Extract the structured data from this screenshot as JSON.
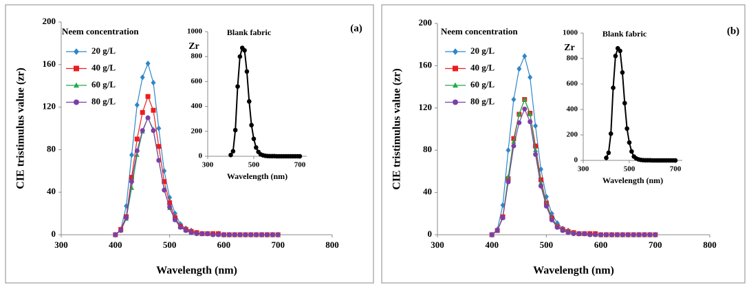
{
  "chart_data": [
    {
      "type": "line",
      "panel_label": "(a)",
      "x_label": "Wavelength (nm)",
      "y_label": "CIE tristimulus value (zr)",
      "legend_title": "Neem concentration",
      "xlim": [
        300,
        800
      ],
      "xticks": [
        300,
        400,
        500,
        600,
        700,
        800
      ],
      "ylim": [
        0,
        200
      ],
      "yticks": [
        0,
        40,
        80,
        120,
        160,
        200
      ],
      "x": [
        400,
        410,
        420,
        430,
        440,
        450,
        460,
        470,
        480,
        490,
        500,
        510,
        520,
        530,
        540,
        550,
        560,
        570,
        580,
        590,
        600,
        610,
        620,
        630,
        640,
        650,
        660,
        670,
        680,
        690,
        700
      ],
      "series": [
        {
          "name": "20 g/L",
          "color": "#2e86c9",
          "marker": "diamond",
          "values": [
            0,
            5,
            27,
            75,
            122,
            148,
            161,
            143,
            100,
            60,
            35,
            20,
            10,
            6,
            4,
            2,
            1,
            1,
            1,
            1,
            0,
            0,
            0,
            0,
            0,
            0,
            0,
            0,
            0,
            0,
            0
          ]
        },
        {
          "name": "40 g/L",
          "color": "#ee1c1c",
          "marker": "square",
          "values": [
            0,
            5,
            17,
            54,
            90,
            115,
            130,
            117,
            83,
            50,
            30,
            16,
            8,
            5,
            3,
            2,
            1,
            1,
            1,
            1,
            0,
            0,
            0,
            0,
            0,
            0,
            0,
            0,
            0,
            0,
            0
          ]
        },
        {
          "name": "60 g/L",
          "color": "#22a94a",
          "marker": "triangle",
          "values": [
            0,
            4,
            15,
            44,
            75,
            97,
            110,
            99,
            70,
            43,
            25,
            14,
            7,
            4,
            2,
            1,
            1,
            1,
            0,
            0,
            0,
            0,
            0,
            0,
            0,
            0,
            0,
            0,
            0,
            0,
            0
          ]
        },
        {
          "name": "80 g/L",
          "color": "#7b3fa6",
          "marker": "circle",
          "values": [
            0,
            4,
            16,
            50,
            79,
            98,
            110,
            98,
            70,
            42,
            26,
            14,
            7,
            4,
            2,
            1,
            1,
            1,
            0,
            0,
            0,
            0,
            0,
            0,
            0,
            0,
            0,
            0,
            0,
            0,
            0
          ]
        }
      ]
    },
    {
      "type": "line",
      "title": "Blank fabric",
      "x_label": "Wavelength (nm)",
      "y_label": "Zr",
      "xlim": [
        300,
        730
      ],
      "xticks": [
        300,
        500,
        700
      ],
      "ylim": [
        0,
        1000
      ],
      "yticks": [
        0,
        200,
        400,
        600,
        800,
        1000
      ],
      "x": [
        400,
        410,
        420,
        430,
        440,
        450,
        460,
        470,
        480,
        490,
        500,
        510,
        520,
        530,
        540,
        550,
        560,
        570,
        580,
        590,
        600,
        610,
        620,
        630,
        640,
        650,
        660,
        670,
        680,
        690,
        700
      ],
      "series": [
        {
          "color": "#000000",
          "marker": "circle",
          "values": [
            10,
            40,
            210,
            560,
            800,
            870,
            850,
            680,
            440,
            250,
            140,
            70,
            35,
            15,
            8,
            4,
            2,
            1,
            1,
            1,
            0,
            0,
            0,
            0,
            0,
            0,
            0,
            0,
            0,
            0,
            0
          ]
        }
      ]
    },
    {
      "type": "line",
      "panel_label": "(b)",
      "x_label": "Wavelength (nm)",
      "y_label": "CIE tristimulus value (zr)",
      "legend_title": "Neem concentration",
      "xlim": [
        300,
        800
      ],
      "xticks": [
        300,
        400,
        500,
        600,
        700,
        800
      ],
      "ylim": [
        0,
        200
      ],
      "yticks": [
        0,
        40,
        80,
        120,
        160,
        200
      ],
      "x": [
        400,
        410,
        420,
        430,
        440,
        450,
        460,
        470,
        480,
        490,
        500,
        510,
        520,
        530,
        540,
        550,
        560,
        570,
        580,
        590,
        600,
        610,
        620,
        630,
        640,
        650,
        660,
        670,
        680,
        690,
        700
      ],
      "series": [
        {
          "name": "20 g/L",
          "color": "#2e86c9",
          "marker": "diamond",
          "values": [
            0,
            5,
            28,
            80,
            128,
            157,
            169,
            149,
            103,
            62,
            36,
            20,
            11,
            6,
            4,
            2,
            1,
            1,
            1,
            1,
            0,
            0,
            0,
            0,
            0,
            0,
            0,
            0,
            0,
            0,
            0
          ]
        },
        {
          "name": "40 g/L",
          "color": "#ee1c1c",
          "marker": "square",
          "values": [
            0,
            4,
            17,
            53,
            91,
            114,
            128,
            115,
            84,
            52,
            30,
            16,
            8,
            5,
            3,
            2,
            1,
            1,
            1,
            1,
            0,
            0,
            0,
            0,
            0,
            0,
            0,
            0,
            0,
            0,
            0
          ]
        },
        {
          "name": "60 g/L",
          "color": "#22a94a",
          "marker": "triangle",
          "values": [
            0,
            4,
            16,
            55,
            88,
            114,
            128,
            114,
            80,
            49,
            29,
            15,
            8,
            4,
            3,
            2,
            1,
            1,
            0,
            0,
            0,
            0,
            0,
            0,
            0,
            0,
            0,
            0,
            0,
            0,
            0
          ]
        },
        {
          "name": "80 g/L",
          "color": "#7b3fa6",
          "marker": "circle",
          "values": [
            0,
            4,
            16,
            50,
            84,
            106,
            119,
            107,
            76,
            46,
            27,
            14,
            7,
            4,
            2,
            1,
            1,
            1,
            0,
            0,
            0,
            0,
            0,
            0,
            0,
            0,
            0,
            0,
            0,
            0,
            0
          ]
        }
      ]
    },
    {
      "type": "line",
      "title": "Blank fabric",
      "x_label": "Wavelength (nm)",
      "y_label": "Zr",
      "xlim": [
        300,
        730
      ],
      "xticks": [
        300,
        500,
        700
      ],
      "ylim": [
        0,
        1000
      ],
      "yticks": [
        0,
        200,
        400,
        600,
        800,
        1000
      ],
      "x": [
        400,
        410,
        420,
        430,
        440,
        450,
        460,
        470,
        480,
        490,
        500,
        510,
        520,
        530,
        540,
        550,
        560,
        570,
        580,
        590,
        600,
        610,
        620,
        630,
        640,
        650,
        660,
        670,
        680,
        690,
        700
      ],
      "series": [
        {
          "color": "#000000",
          "marker": "circle",
          "values": [
            20,
            60,
            210,
            570,
            820,
            880,
            860,
            690,
            450,
            250,
            140,
            70,
            30,
            15,
            8,
            4,
            2,
            1,
            1,
            1,
            0,
            0,
            0,
            0,
            0,
            0,
            0,
            0,
            0,
            0,
            0
          ]
        }
      ]
    }
  ]
}
